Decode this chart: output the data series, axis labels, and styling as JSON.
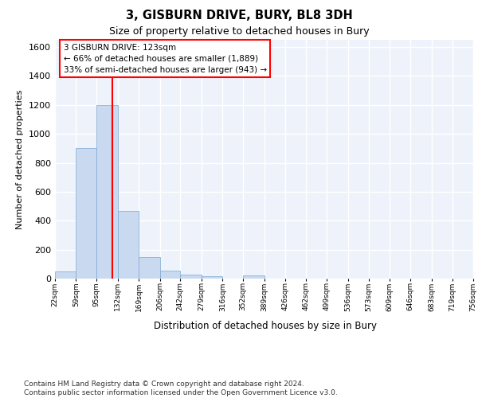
{
  "title": "3, GISBURN DRIVE, BURY, BL8 3DH",
  "subtitle": "Size of property relative to detached houses in Bury",
  "xlabel": "Distribution of detached houses by size in Bury",
  "ylabel": "Number of detached properties",
  "bar_color": "#c9d9f0",
  "bar_edge_color": "#7aa8d4",
  "background_color": "#eef3fb",
  "grid_color": "white",
  "vline_x": 123,
  "vline_color": "red",
  "annotation_text": "3 GISBURN DRIVE: 123sqm\n← 66% of detached houses are smaller (1,889)\n33% of semi-detached houses are larger (943) →",
  "annotation_box_color": "white",
  "annotation_box_edge": "red",
  "footnote": "Contains HM Land Registry data © Crown copyright and database right 2024.\nContains public sector information licensed under the Open Government Licence v3.0.",
  "bin_edges": [
    22,
    59,
    95,
    132,
    169,
    206,
    242,
    279,
    316,
    352,
    389,
    426,
    462,
    499,
    536,
    573,
    609,
    646,
    683,
    719,
    756
  ],
  "bar_heights": [
    50,
    900,
    1200,
    470,
    150,
    55,
    28,
    15,
    0,
    20,
    0,
    0,
    0,
    0,
    0,
    0,
    0,
    0,
    0,
    0
  ],
  "ylim": [
    0,
    1650
  ],
  "xlim": [
    22,
    756
  ],
  "tick_labels": [
    "22sqm",
    "59sqm",
    "95sqm",
    "132sqm",
    "169sqm",
    "206sqm",
    "242sqm",
    "279sqm",
    "316sqm",
    "352sqm",
    "389sqm",
    "426sqm",
    "462sqm",
    "499sqm",
    "536sqm",
    "573sqm",
    "609sqm",
    "646sqm",
    "683sqm",
    "719sqm",
    "756sqm"
  ],
  "yticks": [
    0,
    200,
    400,
    600,
    800,
    1000,
    1200,
    1400,
    1600
  ]
}
